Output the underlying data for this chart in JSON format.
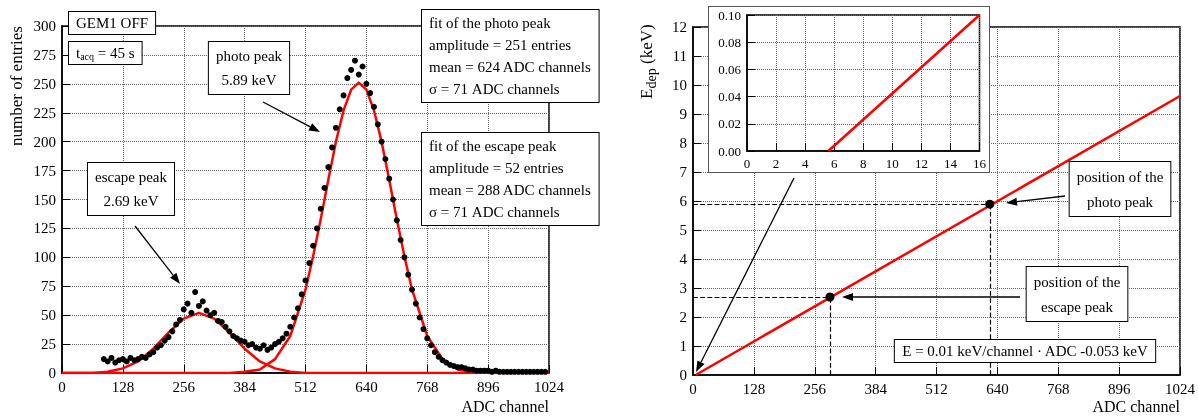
{
  "chart_data": [
    {
      "type": "scatter",
      "xlabel": "ADC channel",
      "ylabel": "number of entries",
      "xlim": [
        0,
        1024
      ],
      "xticks": [
        0,
        128,
        256,
        384,
        512,
        640,
        768,
        896,
        1024
      ],
      "ylim": [
        0,
        300
      ],
      "yticks": [
        0,
        25,
        50,
        75,
        100,
        125,
        150,
        175,
        200,
        225,
        250,
        275,
        300
      ],
      "grid": true,
      "series": [
        {
          "marker": "circle",
          "color": "#000000",
          "x": [
            88,
            96,
            104,
            112,
            120,
            128,
            136,
            144,
            152,
            160,
            168,
            176,
            184,
            192,
            200,
            208,
            216,
            224,
            232,
            240,
            248,
            256,
            264,
            272,
            280,
            288,
            296,
            304,
            312,
            320,
            328,
            336,
            344,
            352,
            360,
            368,
            376,
            384,
            392,
            400,
            408,
            416,
            424,
            432,
            440,
            448,
            456,
            464,
            472,
            480,
            488,
            496,
            504,
            512,
            520,
            528,
            536,
            544,
            552,
            560,
            568,
            576,
            584,
            592,
            600,
            608,
            616,
            624,
            632,
            640,
            648,
            656,
            664,
            672,
            680,
            688,
            696,
            704,
            712,
            720,
            728,
            736,
            744,
            752,
            760,
            768,
            776,
            784,
            792,
            800,
            808,
            816,
            824,
            832,
            840,
            848,
            856,
            864,
            872,
            880,
            888,
            896,
            904,
            912,
            920,
            928,
            936,
            944,
            952,
            960,
            968,
            976,
            984,
            992,
            1000,
            1008,
            1016
          ],
          "values": [
            12,
            10,
            13,
            9,
            11,
            12,
            10,
            13,
            11,
            12,
            14,
            13,
            16,
            18,
            22,
            24,
            28,
            31,
            36,
            42,
            46,
            55,
            60,
            52,
            70,
            58,
            62,
            54,
            50,
            52,
            45,
            44,
            40,
            36,
            32,
            30,
            28,
            27,
            24,
            25,
            22,
            21,
            24,
            20,
            22,
            25,
            27,
            30,
            34,
            40,
            48,
            56,
            68,
            80,
            95,
            110,
            125,
            142,
            160,
            178,
            195,
            212,
            228,
            240,
            255,
            262,
            270,
            258,
            265,
            250,
            242,
            230,
            215,
            200,
            185,
            168,
            150,
            132,
            115,
            100,
            85,
            72,
            60,
            48,
            38,
            30,
            24,
            18,
            14,
            11,
            9,
            7,
            6,
            5,
            5,
            4,
            3,
            3,
            2,
            2,
            2,
            2,
            1,
            2,
            1,
            1,
            1,
            1,
            1,
            1,
            1,
            1,
            1,
            1,
            1,
            1,
            1
          ]
        },
        {
          "type": "line",
          "color": "#ff0000",
          "x": [
            0,
            352,
            384,
            416,
            448,
            480,
            512,
            528,
            544,
            560,
            576,
            592,
            608,
            624,
            640,
            656,
            672,
            688,
            704,
            720,
            736,
            768,
            800,
            832,
            864,
            896,
            1024
          ],
          "values": [
            0,
            0,
            1,
            3,
            12,
            32,
            72,
            101,
            133,
            167,
            200,
            227,
            245,
            251,
            245,
            227,
            200,
            167,
            133,
            101,
            72,
            32,
            12,
            3,
            1,
            0,
            0
          ]
        },
        {
          "type": "line",
          "color": "#ff0000",
          "x": [
            0,
            64,
            96,
            128,
            160,
            192,
            224,
            256,
            288,
            320,
            352,
            384,
            416,
            448,
            480,
            512,
            1024
          ],
          "values": [
            0,
            0,
            1,
            4,
            10,
            21,
            35,
            47,
            52,
            47,
            35,
            21,
            10,
            4,
            1,
            0,
            0
          ]
        }
      ],
      "annotations": [
        "GEM1 OFF",
        "t$_{acq}$ = 45 s",
        "photo peak\n5.89 keV",
        "escape peak\n2.69 keV",
        "fit of the photo peak\namplitude = 251 entries\nmean = 624 ADC channels\nσ = 71 ADC channels",
        "fit of the escape peak\namplitude = 52 entries\nmean = 288 ADC channels\nσ = 71 ADC channels"
      ]
    },
    {
      "type": "line",
      "xlabel": "ADC channel",
      "ylabel": "E$_{dep}$ (keV)",
      "xlim": [
        0,
        1024
      ],
      "xticks": [
        0,
        128,
        256,
        384,
        512,
        640,
        768,
        896,
        1024
      ],
      "ylim": [
        0,
        12
      ],
      "yticks": [
        0,
        1,
        2,
        3,
        4,
        5,
        6,
        7,
        8,
        9,
        10,
        11,
        12
      ],
      "grid": true,
      "series": [
        {
          "color": "#ff0000",
          "x": [
            5.6,
            1024
          ],
          "values": [
            0,
            9.62
          ]
        },
        {
          "type": "scatter",
          "marker": "circle",
          "color": "#000000",
          "x": [
            288,
            624
          ],
          "values": [
            2.69,
            5.89
          ]
        }
      ],
      "ref_lines": [
        {
          "axis": "y",
          "value": 5.89,
          "line_style": "dashed",
          "color": "#000000"
        },
        {
          "axis": "x",
          "value": 624,
          "line_style": "dashed",
          "color": "#000000"
        },
        {
          "axis": "y",
          "value": 2.69,
          "line_style": "dashed",
          "color": "#000000"
        },
        {
          "axis": "x",
          "value": 288,
          "line_style": "dashed",
          "color": "#000000"
        }
      ],
      "annotations": [
        "position of the\nphoto peak",
        "position of the\nescape peak",
        "E = 0.01 keV/channel · ADC -0.053 keV"
      ]
    },
    {
      "type": "line",
      "xlim": [
        0,
        16
      ],
      "xticks": [
        0,
        2,
        4,
        6,
        8,
        10,
        12,
        14,
        16
      ],
      "ylim": [
        0,
        0.1
      ],
      "yticks": [
        {
          "value": 0,
          "label": "0.00"
        },
        {
          "value": 0.02,
          "label": "0.02"
        },
        {
          "value": 0.04,
          "label": "0.04"
        },
        {
          "value": 0.06,
          "label": "0.06"
        },
        {
          "value": 0.08,
          "label": "0.08"
        },
        {
          "value": 0.1,
          "label": "0.10"
        }
      ],
      "grid": true,
      "series": [
        {
          "color": "#ff0000",
          "x": [
            5.6,
            16
          ],
          "values": [
            0,
            0.1
          ]
        }
      ]
    }
  ]
}
